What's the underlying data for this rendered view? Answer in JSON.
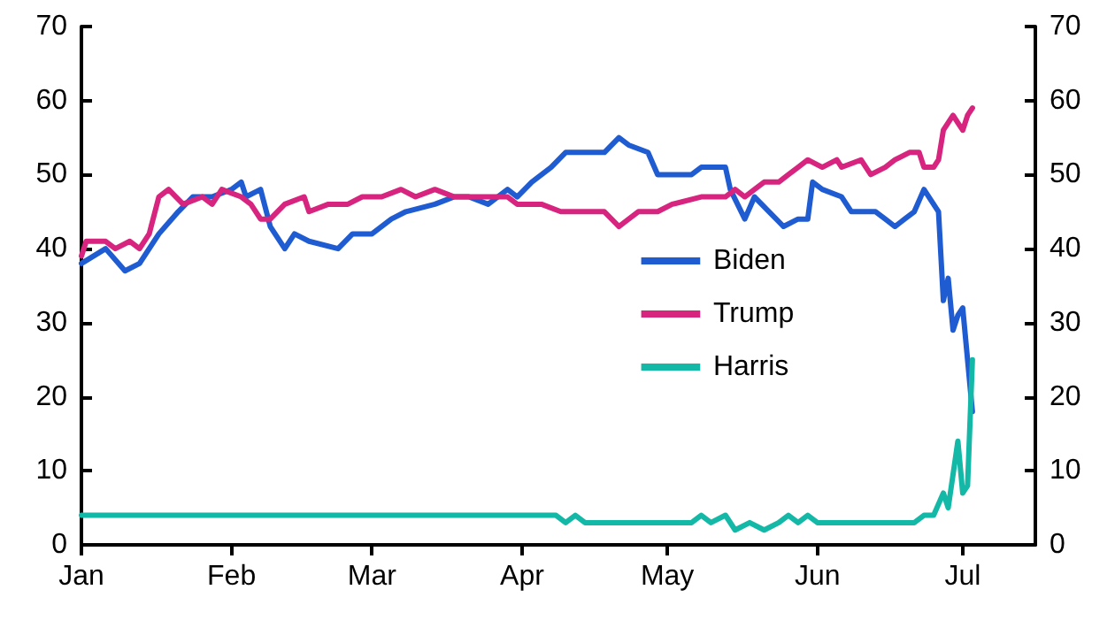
{
  "chart_data": {
    "type": "line",
    "xlim": [
      "--01-01",
      "--07-16"
    ],
    "xticks": [
      {
        "value": "--01-01",
        "label": "Jan"
      },
      {
        "value": "--02-01",
        "label": "Feb"
      },
      {
        "value": "--03-01",
        "label": "Mar"
      },
      {
        "value": "--04-01",
        "label": "Apr"
      },
      {
        "value": "--05-01",
        "label": "May"
      },
      {
        "value": "--06-01",
        "label": "Jun"
      },
      {
        "value": "--07-01",
        "label": "Jul"
      }
    ],
    "ylim": [
      0,
      70
    ],
    "yticks": [
      0,
      10,
      20,
      30,
      40,
      50,
      60,
      70
    ],
    "y2lim": [
      0,
      70
    ],
    "y2ticks": [
      0,
      10,
      20,
      30,
      40,
      50,
      60,
      70
    ],
    "grid": false,
    "legend": "right",
    "marker": "none",
    "line_style": "solid",
    "series": [
      {
        "name": "Biden",
        "color": "#1f5bd1",
        "x": [
          "--01-01",
          "--01-06",
          "--01-10",
          "--01-13",
          "--01-17",
          "--01-21",
          "--01-24",
          "--01-28",
          "--02-01",
          "--02-03",
          "--02-04",
          "--02-07",
          "--02-09",
          "--02-12",
          "--02-14",
          "--02-17",
          "--02-23",
          "--02-26",
          "--03-01",
          "--03-05",
          "--03-08",
          "--03-14",
          "--03-18",
          "--03-21",
          "--03-25",
          "--03-29",
          "--03-31",
          "--04-03",
          "--04-07",
          "--04-10",
          "--04-14",
          "--04-18",
          "--04-21",
          "--04-23",
          "--04-27",
          "--04-29",
          "--05-02",
          "--05-06",
          "--05-08",
          "--05-13",
          "--05-14",
          "--05-17",
          "--05-19",
          "--05-22",
          "--05-25",
          "--05-28",
          "--05-30",
          "--05-31",
          "--06-02",
          "--06-06",
          "--06-08",
          "--06-13",
          "--06-15",
          "--06-17",
          "--06-19",
          "--06-21",
          "--06-23",
          "--06-24",
          "--06-26",
          "--06-27",
          "--06-28",
          "--06-29",
          "--06-30",
          "--07-01",
          "--07-03"
        ],
        "values": [
          38,
          40,
          37,
          38,
          42,
          45,
          47,
          47,
          48,
          49,
          47,
          48,
          43,
          40,
          42,
          41,
          40,
          42,
          42,
          44,
          45,
          46,
          47,
          47,
          46,
          48,
          47,
          49,
          51,
          53,
          53,
          53,
          55,
          54,
          53,
          50,
          50,
          50,
          51,
          51,
          48,
          44,
          47,
          45,
          43,
          44,
          44,
          49,
          48,
          47,
          45,
          45,
          44,
          43,
          44,
          45,
          48,
          47,
          45,
          33,
          36,
          29,
          31,
          32,
          18
        ]
      },
      {
        "name": "Trump",
        "color": "#d6247f",
        "x": [
          "--01-01",
          "--01-02",
          "--01-06",
          "--01-08",
          "--01-11",
          "--01-13",
          "--01-15",
          "--01-17",
          "--01-19",
          "--01-22",
          "--01-26",
          "--01-28",
          "--01-30",
          "--02-03",
          "--02-05",
          "--02-07",
          "--02-09",
          "--02-12",
          "--02-16",
          "--02-17",
          "--02-21",
          "--02-25",
          "--02-28",
          "--03-03",
          "--03-07",
          "--03-10",
          "--03-14",
          "--03-18",
          "--03-21",
          "--03-25",
          "--03-29",
          "--03-31",
          "--04-05",
          "--04-09",
          "--04-14",
          "--04-18",
          "--04-21",
          "--04-25",
          "--04-29",
          "--05-02",
          "--05-08",
          "--05-13",
          "--05-15",
          "--05-17",
          "--05-19",
          "--05-21",
          "--05-24",
          "--05-26",
          "--05-28",
          "--05-30",
          "--06-02",
          "--06-05",
          "--06-06",
          "--06-10",
          "--06-12",
          "--06-15",
          "--06-17",
          "--06-20",
          "--06-22",
          "--06-23",
          "--06-25",
          "--06-26",
          "--06-27",
          "--06-29",
          "--06-30",
          "--07-01",
          "--07-02",
          "--07-03"
        ],
        "values": [
          39,
          41,
          41,
          40,
          41,
          40,
          42,
          47,
          48,
          46,
          47,
          46,
          48,
          47,
          46,
          44,
          44,
          46,
          47,
          45,
          46,
          46,
          47,
          47,
          48,
          47,
          48,
          47,
          47,
          47,
          47,
          46,
          46,
          45,
          45,
          45,
          43,
          45,
          45,
          46,
          47,
          47,
          48,
          47,
          48,
          49,
          49,
          50,
          51,
          52,
          51,
          52,
          51,
          52,
          50,
          51,
          52,
          53,
          53,
          51,
          51,
          52,
          56,
          58,
          57,
          56,
          58,
          59
        ]
      },
      {
        "name": "Harris",
        "color": "#13b8a6",
        "x": [
          "--01-01",
          "--04-08",
          "--04-10",
          "--04-12",
          "--04-14",
          "--05-06",
          "--05-08",
          "--05-10",
          "--05-13",
          "--05-15",
          "--05-18",
          "--05-21",
          "--05-24",
          "--05-26",
          "--05-28",
          "--05-30",
          "--06-01",
          "--06-21",
          "--06-23",
          "--06-25",
          "--06-27",
          "--06-28",
          "--06-30",
          "--07-01",
          "--07-02",
          "--07-03"
        ],
        "values": [
          4,
          4,
          3,
          4,
          3,
          3,
          4,
          3,
          4,
          2,
          3,
          2,
          3,
          4,
          3,
          4,
          3,
          3,
          4,
          4,
          7,
          5,
          14,
          7,
          8,
          25
        ]
      }
    ]
  }
}
